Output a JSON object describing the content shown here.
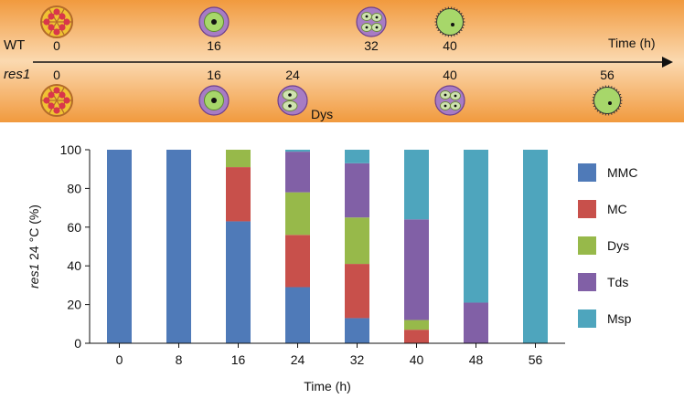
{
  "timeline": {
    "wt": {
      "label": "WT",
      "ticks": [
        {
          "value": 0,
          "label": "0",
          "stage": "MMC"
        },
        {
          "value": 16,
          "label": "16",
          "stage": "MC"
        },
        {
          "value": 32,
          "label": "32",
          "stage": "Tds"
        },
        {
          "value": 40,
          "label": "40",
          "stage": "Msp"
        }
      ]
    },
    "res1": {
      "label": "res1",
      "ticks": [
        {
          "value": 0,
          "label": "0",
          "stage": "MMC"
        },
        {
          "value": 16,
          "label": "16",
          "stage": "MC"
        },
        {
          "value": 24,
          "label": "24",
          "stage": "Dys",
          "note": "Dys"
        },
        {
          "value": 40,
          "label": "40",
          "stage": "Tds"
        },
        {
          "value": 56,
          "label": "56",
          "stage": "Msp"
        }
      ]
    },
    "axis_label": "Time (h)"
  },
  "chart_data": {
    "type": "bar",
    "stacked": true,
    "categories": [
      "0",
      "8",
      "16",
      "24",
      "32",
      "40",
      "48",
      "56"
    ],
    "series": [
      {
        "name": "MMC",
        "color": "#4f7ab8",
        "values": [
          100,
          100,
          63,
          29,
          13,
          0,
          0,
          0
        ]
      },
      {
        "name": "MC",
        "color": "#c8504b",
        "values": [
          0,
          0,
          28,
          27,
          28,
          7,
          0,
          0
        ]
      },
      {
        "name": "Dys",
        "color": "#97b94a",
        "values": [
          0,
          0,
          9,
          22,
          24,
          5,
          0,
          0
        ]
      },
      {
        "name": "Tds",
        "color": "#8160a6",
        "values": [
          0,
          0,
          0,
          21,
          28,
          52,
          21,
          0
        ]
      },
      {
        "name": "Msp",
        "color": "#4ea5bd",
        "values": [
          0,
          0,
          0,
          1,
          7,
          36,
          79,
          100
        ]
      }
    ],
    "ylim": [
      0,
      100
    ],
    "yticks": [
      "0",
      "20",
      "40",
      "60",
      "80",
      "100"
    ],
    "ylabel_italic": "res1",
    "ylabel_rest": " 24 °C (%)",
    "xlabel": "Time (h)",
    "legend_position": "right"
  }
}
